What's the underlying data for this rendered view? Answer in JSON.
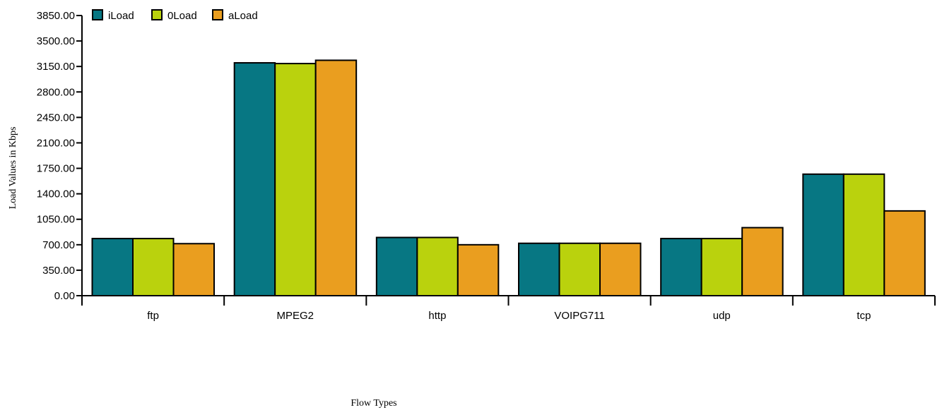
{
  "chart_data": {
    "type": "bar",
    "xlabel": "Flow Types",
    "ylabel": "Load Values in Kbps",
    "ylim": [
      0,
      3850
    ],
    "yticks": [
      "0.00",
      "350.00",
      "700.00",
      "1050.00",
      "1400.00",
      "1750.00",
      "2100.00",
      "2450.00",
      "2800.00",
      "3150.00",
      "3500.00",
      "3850.00"
    ],
    "categories": [
      "ftp",
      "MPEG2",
      "http",
      "VOIPG711",
      "udp",
      "tcp"
    ],
    "series": [
      {
        "name": "iLoad",
        "color": "#077783",
        "values": [
          785,
          3200,
          800,
          720,
          785,
          1670
        ]
      },
      {
        "name": "0Load",
        "color": "#bad20d",
        "values": [
          785,
          3190,
          800,
          720,
          785,
          1670
        ]
      },
      {
        "name": "aLoad",
        "color": "#ea9e1f",
        "values": [
          715,
          3235,
          700,
          720,
          935,
          1165
        ]
      }
    ],
    "legend_position": "top-left",
    "grid": false
  }
}
